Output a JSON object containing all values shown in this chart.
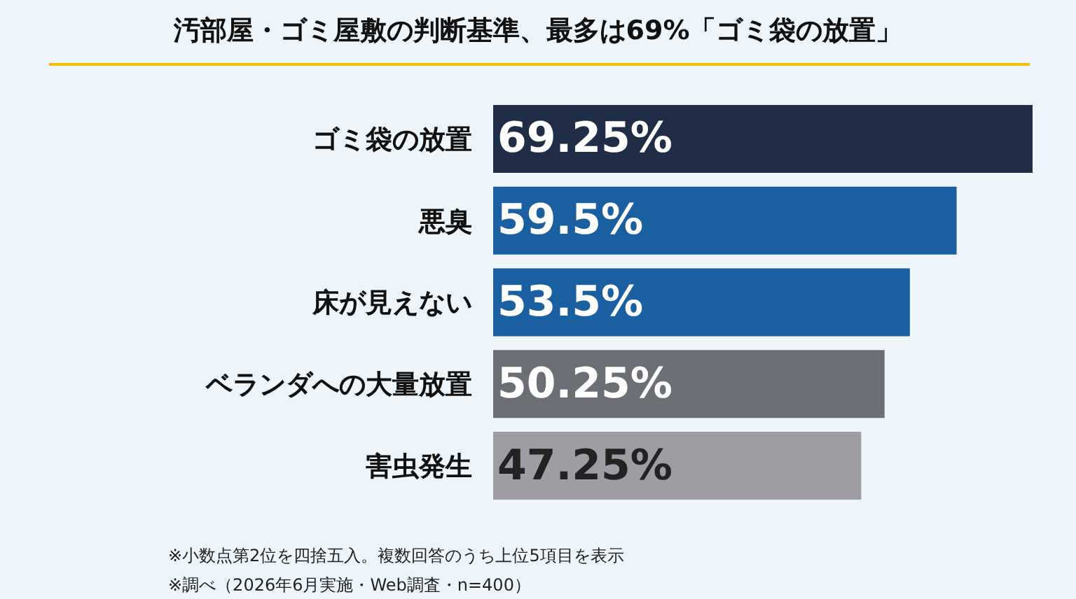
{
  "chart_data": {
    "type": "bar",
    "orientation": "horizontal",
    "xlim": [
      0,
      69.25
    ],
    "title": "汚部屋・ゴミ屋敷の判断基準、最多は69%「ゴミ袋の放置」",
    "categories": [
      "ゴミ袋の放置",
      "悪臭",
      "床が見えない",
      "ベランダへの大量放置",
      "害虫発生"
    ],
    "values": [
      69.25,
      59.5,
      53.5,
      50.25,
      47.25
    ],
    "value_labels": [
      "69.25%",
      "59.5%",
      "53.5%",
      "50.25%",
      "47.25%"
    ],
    "colors": [
      "#1f2d47",
      "#1a5fa0",
      "#1a5fa0",
      "#6b6e75",
      "#a09ca3"
    ],
    "annotations": [
      "※小数点第2位を四捨五入。複数回答のうち上位5項目を表示",
      "※調べ（2026年6月実施・Web調査・n=400）"
    ],
    "tick_labels": "y"
  }
}
